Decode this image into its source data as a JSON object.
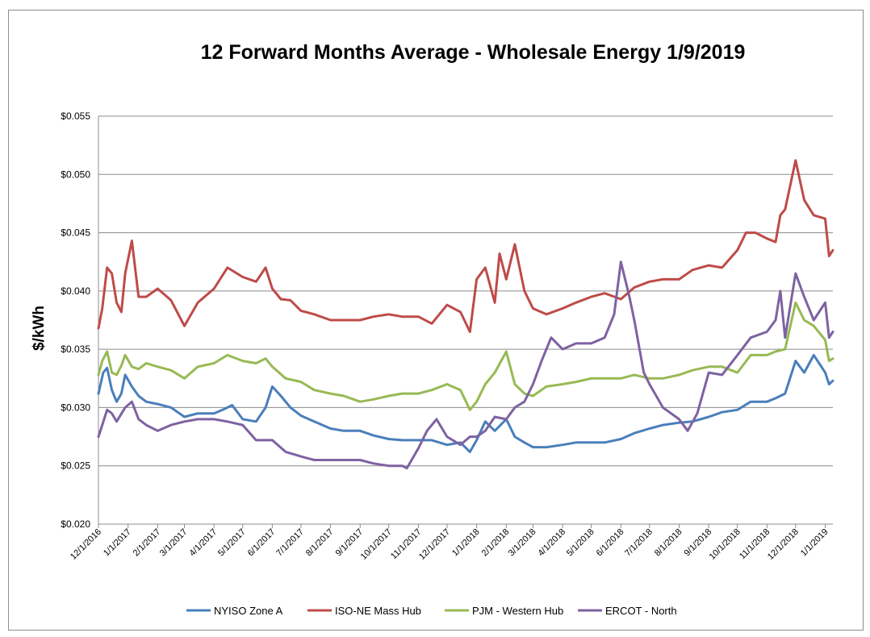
{
  "chart_data": {
    "type": "line",
    "title": "12 Forward Months Average - Wholesale Energy 1/9/2019",
    "xlabel": "",
    "ylabel": "$/kWh",
    "ylim": [
      0.02,
      0.055
    ],
    "yticks": [
      0.02,
      0.025,
      0.03,
      0.035,
      0.04,
      0.045,
      0.05,
      0.055
    ],
    "ytick_labels": [
      "$0.020",
      "$0.025",
      "$0.030",
      "$0.035",
      "$0.040",
      "$0.045",
      "$0.050",
      "$0.055"
    ],
    "xlim": [
      "12/1/2016",
      "1/9/2019"
    ],
    "xtick_labels": [
      "12/1/2016",
      "1/1/2017",
      "2/1/2017",
      "3/1/2017",
      "4/1/2017",
      "5/1/2017",
      "6/1/2017",
      "7/1/2017",
      "8/1/2017",
      "9/1/2017",
      "10/1/2017",
      "11/1/2017",
      "12/1/2017",
      "1/1/2018",
      "2/1/2018",
      "3/1/2018",
      "4/1/2018",
      "5/1/2018",
      "6/1/2018",
      "7/1/2018",
      "8/1/2018",
      "9/1/2018",
      "10/1/2018",
      "11/1/2018",
      "12/1/2018",
      "1/1/2019"
    ],
    "grid": true,
    "legend_position": "bottom",
    "series": [
      {
        "name": "NYISO Zone A",
        "color": "#4a7ebb",
        "x": [
          "12/1/2016",
          "12/6/2016",
          "12/10/2016",
          "12/15/2016",
          "12/20/2016",
          "12/25/2016",
          "12/29/2016",
          "1/5/2017",
          "1/12/2017",
          "1/20/2017",
          "2/1/2017",
          "2/15/2017",
          "3/1/2017",
          "3/15/2017",
          "4/1/2017",
          "4/10/2017",
          "4/20/2017",
          "5/1/2017",
          "5/15/2017",
          "5/25/2017",
          "6/1/2017",
          "6/10/2017",
          "6/20/2017",
          "7/1/2017",
          "7/15/2017",
          "8/1/2017",
          "8/15/2017",
          "9/1/2017",
          "9/15/2017",
          "10/1/2017",
          "10/15/2017",
          "11/1/2017",
          "11/15/2017",
          "12/1/2017",
          "12/15/2017",
          "12/25/2017",
          "1/1/2018",
          "1/10/2018",
          "1/20/2018",
          "2/1/2018",
          "2/10/2018",
          "2/20/2018",
          "3/1/2018",
          "3/15/2018",
          "4/1/2018",
          "4/15/2018",
          "5/1/2018",
          "5/15/2018",
          "6/1/2018",
          "6/15/2018",
          "7/1/2018",
          "7/15/2018",
          "8/1/2018",
          "8/15/2018",
          "9/1/2018",
          "9/15/2018",
          "10/1/2018",
          "10/15/2018",
          "11/1/2018",
          "11/10/2018",
          "11/20/2018",
          "12/1/2018",
          "12/10/2018",
          "12/20/2018",
          "1/1/2019",
          "1/5/2019",
          "1/9/2019"
        ],
        "y": [
          0.0312,
          0.033,
          0.0334,
          0.0315,
          0.0305,
          0.0312,
          0.0328,
          0.0318,
          0.031,
          0.0305,
          0.0303,
          0.03,
          0.0292,
          0.0295,
          0.0295,
          0.0298,
          0.0302,
          0.029,
          0.0288,
          0.03,
          0.0318,
          0.031,
          0.03,
          0.0293,
          0.0288,
          0.0282,
          0.028,
          0.028,
          0.0276,
          0.0273,
          0.0272,
          0.0272,
          0.0272,
          0.0268,
          0.027,
          0.0262,
          0.0272,
          0.0288,
          0.028,
          0.029,
          0.0275,
          0.027,
          0.0266,
          0.0266,
          0.0268,
          0.027,
          0.027,
          0.027,
          0.0273,
          0.0278,
          0.0282,
          0.0285,
          0.0287,
          0.0288,
          0.0292,
          0.0296,
          0.0298,
          0.0305,
          0.0305,
          0.0308,
          0.0312,
          0.034,
          0.033,
          0.0345,
          0.033,
          0.032,
          0.0323
        ]
      },
      {
        "name": "ISO-NE Mass Hub",
        "color": "#be4b48",
        "x": [
          "12/1/2016",
          "12/5/2016",
          "12/10/2016",
          "12/15/2016",
          "12/20/2016",
          "12/25/2016",
          "12/29/2016",
          "1/5/2017",
          "1/12/2017",
          "1/20/2017",
          "2/1/2017",
          "2/15/2017",
          "3/1/2017",
          "3/15/2017",
          "4/1/2017",
          "4/15/2017",
          "5/1/2017",
          "5/15/2017",
          "5/25/2017",
          "6/1/2017",
          "6/10/2017",
          "6/20/2017",
          "7/1/2017",
          "7/15/2017",
          "8/1/2017",
          "8/15/2017",
          "9/1/2017",
          "9/15/2017",
          "10/1/2017",
          "10/15/2017",
          "11/1/2017",
          "11/15/2017",
          "12/1/2017",
          "12/15/2017",
          "12/25/2017",
          "1/1/2018",
          "1/10/2018",
          "1/20/2018",
          "1/25/2018",
          "2/1/2018",
          "2/10/2018",
          "2/20/2018",
          "3/1/2018",
          "3/15/2018",
          "4/1/2018",
          "4/15/2018",
          "5/1/2018",
          "5/15/2018",
          "6/1/2018",
          "6/15/2018",
          "7/1/2018",
          "7/15/2018",
          "8/1/2018",
          "8/15/2018",
          "9/1/2018",
          "9/15/2018",
          "10/1/2018",
          "10/10/2018",
          "10/20/2018",
          "11/1/2018",
          "11/10/2018",
          "11/15/2018",
          "11/20/2018",
          "12/1/2018",
          "12/10/2018",
          "12/20/2018",
          "1/1/2019",
          "1/5/2019",
          "1/9/2019"
        ],
        "y": [
          0.0368,
          0.0385,
          0.042,
          0.0415,
          0.039,
          0.0382,
          0.0415,
          0.0443,
          0.0395,
          0.0395,
          0.0402,
          0.0392,
          0.037,
          0.039,
          0.0402,
          0.042,
          0.0412,
          0.0408,
          0.042,
          0.0402,
          0.0393,
          0.0392,
          0.0383,
          0.038,
          0.0375,
          0.0375,
          0.0375,
          0.0378,
          0.038,
          0.0378,
          0.0378,
          0.0372,
          0.0388,
          0.0382,
          0.0365,
          0.041,
          0.042,
          0.039,
          0.0432,
          0.041,
          0.044,
          0.04,
          0.0385,
          0.038,
          0.0385,
          0.039,
          0.0395,
          0.0398,
          0.0393,
          0.0403,
          0.0408,
          0.041,
          0.041,
          0.0418,
          0.0422,
          0.042,
          0.0435,
          0.045,
          0.045,
          0.0445,
          0.0442,
          0.0465,
          0.047,
          0.0512,
          0.0478,
          0.0465,
          0.0462,
          0.043,
          0.0435
        ]
      },
      {
        "name": "PJM - Western Hub",
        "color": "#98b954",
        "x": [
          "12/1/2016",
          "12/5/2016",
          "12/10/2016",
          "12/15/2016",
          "12/20/2016",
          "12/25/2016",
          "12/29/2016",
          "1/5/2017",
          "1/12/2017",
          "1/20/2017",
          "2/1/2017",
          "2/15/2017",
          "3/1/2017",
          "3/15/2017",
          "4/1/2017",
          "4/15/2017",
          "5/1/2017",
          "5/15/2017",
          "5/25/2017",
          "6/1/2017",
          "6/15/2017",
          "7/1/2017",
          "7/15/2017",
          "8/1/2017",
          "8/15/2017",
          "9/1/2017",
          "9/15/2017",
          "10/1/2017",
          "10/15/2017",
          "11/1/2017",
          "11/15/2017",
          "12/1/2017",
          "12/15/2017",
          "12/25/2017",
          "1/1/2018",
          "1/10/2018",
          "1/20/2018",
          "2/1/2018",
          "2/10/2018",
          "2/20/2018",
          "3/1/2018",
          "3/15/2018",
          "4/1/2018",
          "4/15/2018",
          "5/1/2018",
          "5/15/2018",
          "6/1/2018",
          "6/15/2018",
          "7/1/2018",
          "7/15/2018",
          "8/1/2018",
          "8/15/2018",
          "9/1/2018",
          "9/15/2018",
          "10/1/2018",
          "10/15/2018",
          "11/1/2018",
          "11/10/2018",
          "11/20/2018",
          "12/1/2018",
          "12/10/2018",
          "12/20/2018",
          "1/1/2019",
          "1/5/2019",
          "1/9/2019"
        ],
        "y": [
          0.0328,
          0.034,
          0.0348,
          0.033,
          0.0328,
          0.0336,
          0.0345,
          0.0335,
          0.0333,
          0.0338,
          0.0335,
          0.0332,
          0.0325,
          0.0335,
          0.0338,
          0.0345,
          0.034,
          0.0338,
          0.0342,
          0.0335,
          0.0325,
          0.0322,
          0.0315,
          0.0312,
          0.031,
          0.0305,
          0.0307,
          0.031,
          0.0312,
          0.0312,
          0.0315,
          0.032,
          0.0315,
          0.0298,
          0.0305,
          0.032,
          0.033,
          0.0348,
          0.032,
          0.0312,
          0.031,
          0.0318,
          0.032,
          0.0322,
          0.0325,
          0.0325,
          0.0325,
          0.0328,
          0.0325,
          0.0325,
          0.0328,
          0.0332,
          0.0335,
          0.0335,
          0.033,
          0.0345,
          0.0345,
          0.0348,
          0.035,
          0.039,
          0.0375,
          0.037,
          0.0358,
          0.034,
          0.0342
        ]
      },
      {
        "name": "ERCOT - North",
        "color": "#7e62a1",
        "x": [
          "12/1/2016",
          "12/5/2016",
          "12/10/2016",
          "12/15/2016",
          "12/20/2016",
          "12/29/2016",
          "1/5/2017",
          "1/12/2017",
          "1/20/2017",
          "2/1/2017",
          "2/15/2017",
          "3/1/2017",
          "3/15/2017",
          "4/1/2017",
          "4/15/2017",
          "5/1/2017",
          "5/15/2017",
          "6/1/2017",
          "6/15/2017",
          "7/1/2017",
          "7/15/2017",
          "8/1/2017",
          "8/15/2017",
          "9/1/2017",
          "9/15/2017",
          "10/1/2017",
          "10/15/2017",
          "10/20/2017",
          "11/1/2017",
          "11/10/2017",
          "11/20/2017",
          "12/1/2017",
          "12/15/2017",
          "12/25/2017",
          "1/1/2018",
          "1/10/2018",
          "1/20/2018",
          "2/1/2018",
          "2/10/2018",
          "2/20/2018",
          "3/1/2018",
          "3/10/2018",
          "3/20/2018",
          "4/1/2018",
          "4/15/2018",
          "5/1/2018",
          "5/15/2018",
          "5/25/2018",
          "6/1/2018",
          "6/10/2018",
          "6/15/2018",
          "6/25/2018",
          "7/1/2018",
          "7/15/2018",
          "8/1/2018",
          "8/10/2018",
          "8/20/2018",
          "9/1/2018",
          "9/15/2018",
          "10/1/2018",
          "10/15/2018",
          "11/1/2018",
          "11/10/2018",
          "11/15/2018",
          "11/20/2018",
          "12/1/2018",
          "12/10/2018",
          "12/20/2018",
          "1/1/2019",
          "1/5/2019",
          "1/9/2019"
        ],
        "y": [
          0.0275,
          0.0285,
          0.0298,
          0.0295,
          0.0288,
          0.03,
          0.0305,
          0.029,
          0.0285,
          0.028,
          0.0285,
          0.0288,
          0.029,
          0.029,
          0.0288,
          0.0285,
          0.0272,
          0.0272,
          0.0262,
          0.0258,
          0.0255,
          0.0255,
          0.0255,
          0.0255,
          0.0252,
          0.025,
          0.025,
          0.0248,
          0.0265,
          0.028,
          0.029,
          0.0275,
          0.0268,
          0.0275,
          0.0275,
          0.028,
          0.0292,
          0.029,
          0.03,
          0.0305,
          0.032,
          0.034,
          0.036,
          0.035,
          0.0355,
          0.0355,
          0.036,
          0.038,
          0.0425,
          0.0395,
          0.0375,
          0.033,
          0.032,
          0.03,
          0.029,
          0.028,
          0.0295,
          0.033,
          0.0328,
          0.0345,
          0.036,
          0.0365,
          0.0375,
          0.04,
          0.036,
          0.0415,
          0.0395,
          0.0375,
          0.039,
          0.036,
          0.0365
        ]
      }
    ]
  }
}
